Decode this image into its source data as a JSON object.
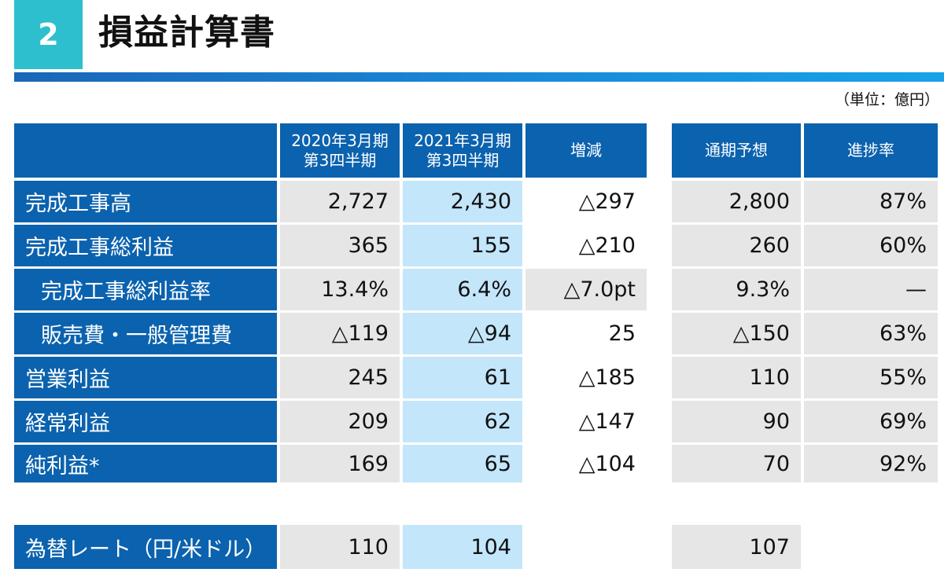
{
  "header": {
    "number": "2",
    "title": "損益計算書"
  },
  "unit": "（単位：億円）",
  "table": {
    "columns": [
      "2020年3月期\n第3四半期",
      "2021年3月期\n第3四半期",
      "増減",
      "通期予想",
      "進捗率"
    ],
    "rows": [
      {
        "label": "完成工事高",
        "indent": false,
        "values": [
          "2,727",
          "2,430",
          "△297",
          "2,800",
          "87%"
        ]
      },
      {
        "label": "完成工事総利益",
        "indent": false,
        "values": [
          "365",
          "155",
          "△210",
          "260",
          "60%"
        ]
      },
      {
        "label": "完成工事総利益率",
        "indent": true,
        "values": [
          "13.4%",
          "6.4%",
          "△7.0pt",
          "9.3%",
          "—"
        ]
      },
      {
        "label": "販売費・一般管理費",
        "indent": true,
        "values": [
          "△119",
          "△94",
          "25",
          "△150",
          "63%"
        ]
      },
      {
        "label": "営業利益",
        "indent": false,
        "values": [
          "245",
          "61",
          "△185",
          "110",
          "55%"
        ]
      },
      {
        "label": "経常利益",
        "indent": false,
        "values": [
          "209",
          "62",
          "△147",
          "90",
          "69%"
        ]
      },
      {
        "label": "純利益*",
        "indent": false,
        "values": [
          "169",
          "65",
          "△104",
          "70",
          "92%"
        ]
      }
    ]
  },
  "fx": {
    "label": "為替レート（円/米ドル）",
    "values": [
      "110",
      "104",
      "107"
    ]
  }
}
